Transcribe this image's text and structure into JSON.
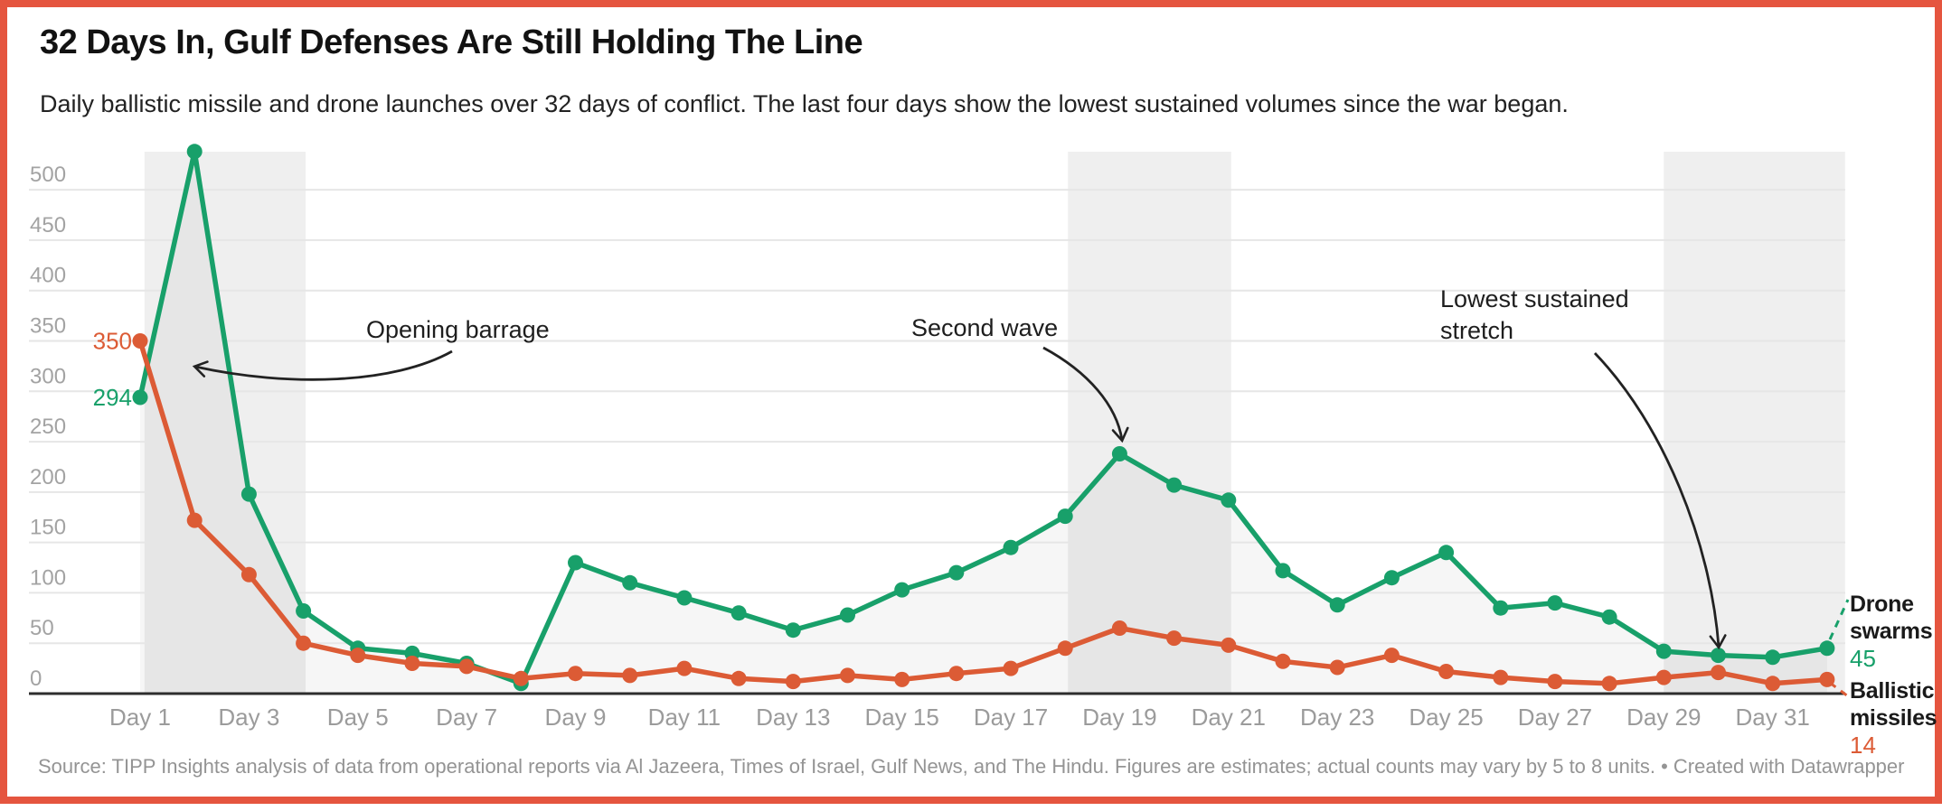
{
  "header": {
    "title": "32 Days In, Gulf Defenses Are Still Holding The Line",
    "subtitle": "Daily ballistic missile and drone launches over 32 days of conflict. The last four days show the lowest sustained volumes since the war began."
  },
  "chart_data": {
    "type": "line",
    "x_unit": "day",
    "num_days": 32,
    "x_tick_labels": [
      "Day 1",
      "Day 3",
      "Day 5",
      "Day 7",
      "Day 9",
      "Day 11",
      "Day 13",
      "Day 15",
      "Day 17",
      "Day 19",
      "Day 21",
      "Day 23",
      "Day 25",
      "Day 27",
      "Day 29",
      "Day 31"
    ],
    "y_ticks": [
      0,
      50,
      100,
      150,
      200,
      250,
      300,
      350,
      400,
      450,
      500
    ],
    "ylim": [
      0,
      540
    ],
    "grid": true,
    "series": [
      {
        "name": "Drone swarms",
        "color": "#18a06a",
        "start_label": "294",
        "end_label": "45",
        "values": [
          294,
          538,
          198,
          82,
          45,
          40,
          30,
          10,
          130,
          110,
          95,
          80,
          63,
          78,
          103,
          120,
          145,
          176,
          238,
          207,
          192,
          122,
          88,
          115,
          140,
          85,
          90,
          76,
          42,
          38,
          36,
          45
        ]
      },
      {
        "name": "Ballistic missiles",
        "color": "#dc5b35",
        "start_label": "350",
        "end_label": "14",
        "values": [
          350,
          172,
          118,
          50,
          38,
          30,
          27,
          15,
          20,
          18,
          25,
          15,
          12,
          18,
          14,
          20,
          25,
          45,
          65,
          55,
          48,
          32,
          26,
          38,
          22,
          16,
          12,
          10,
          16,
          21,
          10,
          14
        ]
      }
    ],
    "highlight_bands": [
      {
        "from_day": 1.08,
        "to_day": 4.04
      },
      {
        "from_day": 18.05,
        "to_day": 21.05
      },
      {
        "from_day": 29.0,
        "to_day": 32.33
      }
    ],
    "annotations": [
      {
        "text": "Opening barrage"
      },
      {
        "text": "Second wave"
      },
      {
        "text": "Lowest sustained\nstretch"
      }
    ]
  },
  "legend": {
    "drone_label": "Drone swarms",
    "drone_value": "45",
    "missile_label": "Ballistic missiles",
    "missile_value": "14"
  },
  "footer": {
    "source": "Source: TIPP Insights analysis of data from operational reports via Al Jazeera, Times of Israel, Gulf News, and The Hindu. Figures are estimates; actual counts may vary by 5 to 8 units. •",
    "credit": "Created with Datawrapper"
  }
}
